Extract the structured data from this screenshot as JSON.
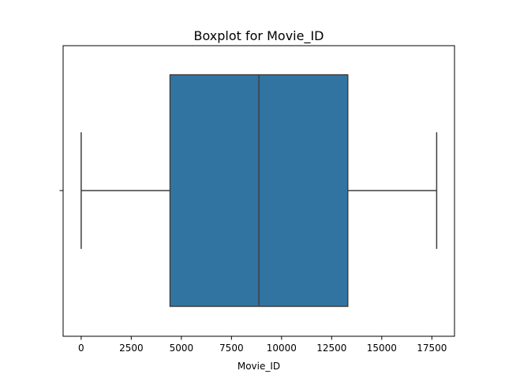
{
  "chart_data": {
    "type": "boxplot",
    "title": "Boxplot for Movie_ID",
    "xlabel": "Movie_ID",
    "ylabel": "",
    "orientation": "horizontal",
    "xlim": [
      -900,
      18630
    ],
    "xticks": [
      0,
      2500,
      5000,
      7500,
      10000,
      12500,
      15000,
      17500
    ],
    "xtick_labels": [
      "0",
      "2500",
      "5000",
      "7500",
      "10000",
      "12500",
      "15000",
      "17500"
    ],
    "box": {
      "whisker_low": 1,
      "q1": 4435,
      "median": 8870,
      "q3": 13305,
      "whisker_high": 17740
    },
    "grid": false,
    "colors": {
      "box_fill": "#3274a1",
      "line": "#3f3f3f",
      "axis": "#000000"
    }
  }
}
